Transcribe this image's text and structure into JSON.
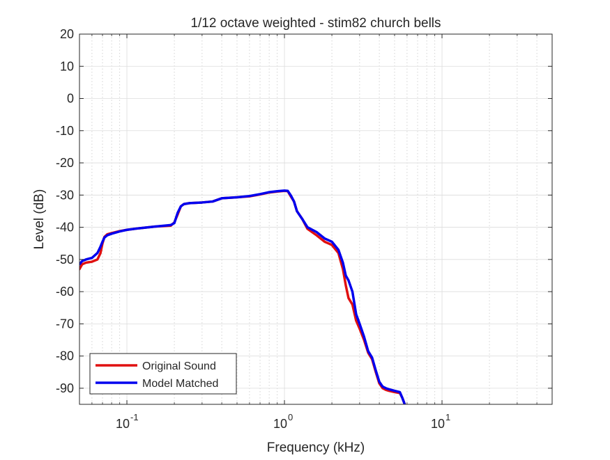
{
  "chart_data": {
    "type": "line",
    "title": "1/12 octave weighted - stim82 church bells",
    "xlabel": "Frequency (kHz)",
    "ylabel": "Level (dB)",
    "xscale": "log",
    "xlim": [
      0.05,
      50
    ],
    "ylim": [
      -95,
      20
    ],
    "grid": true,
    "legend_location": "bottom-left",
    "x_ticks": [
      {
        "value": 0.1,
        "base": "10",
        "exp": "-1"
      },
      {
        "value": 1,
        "base": "10",
        "exp": "0"
      },
      {
        "value": 10,
        "base": "10",
        "exp": "1"
      }
    ],
    "y_ticks": [
      20,
      10,
      0,
      -10,
      -20,
      -30,
      -40,
      -50,
      -60,
      -70,
      -80,
      -90
    ],
    "series": [
      {
        "name": "Original Sound",
        "color": "#e01010",
        "x": [
          0.05,
          0.052,
          0.055,
          0.06,
          0.065,
          0.068,
          0.07,
          0.072,
          0.075,
          0.08,
          0.09,
          0.1,
          0.12,
          0.15,
          0.19,
          0.2,
          0.21,
          0.22,
          0.23,
          0.25,
          0.3,
          0.35,
          0.4,
          0.5,
          0.6,
          0.7,
          0.8,
          0.9,
          1.0,
          1.05,
          1.1,
          1.15,
          1.2,
          1.3,
          1.4,
          1.6,
          1.8,
          1.9,
          2.0,
          2.2,
          2.35,
          2.45,
          2.55,
          2.7,
          2.85,
          3.0,
          3.2,
          3.4,
          3.6,
          3.8,
          4.0,
          4.2,
          4.4,
          4.6,
          5.0,
          5.4,
          5.6,
          5.8
        ],
        "y": [
          -53,
          -51.5,
          -51,
          -50.7,
          -50,
          -48,
          -45,
          -43,
          -42.2,
          -41.8,
          -41.2,
          -40.8,
          -40.3,
          -39.8,
          -39.5,
          -38.5,
          -36,
          -33.5,
          -32.8,
          -32.5,
          -32.3,
          -32.0,
          -31.0,
          -30.7,
          -30.4,
          -29.8,
          -29.2,
          -28.9,
          -28.7,
          -28.8,
          -30.5,
          -32,
          -35,
          -37.5,
          -40.5,
          -42.5,
          -44.5,
          -45,
          -45.5,
          -48,
          -53,
          -58,
          -62,
          -64,
          -69,
          -71.5,
          -75,
          -79,
          -81,
          -85,
          -88.5,
          -90,
          -90.5,
          -90.8,
          -91.2,
          -91.5,
          -93,
          -95
        ]
      },
      {
        "name": "Model Matched",
        "color": "#0000ee",
        "x": [
          0.05,
          0.052,
          0.055,
          0.06,
          0.065,
          0.068,
          0.07,
          0.072,
          0.075,
          0.08,
          0.09,
          0.1,
          0.12,
          0.15,
          0.19,
          0.2,
          0.21,
          0.22,
          0.23,
          0.25,
          0.3,
          0.35,
          0.4,
          0.5,
          0.6,
          0.7,
          0.8,
          0.9,
          1.0,
          1.05,
          1.1,
          1.15,
          1.2,
          1.3,
          1.4,
          1.6,
          1.8,
          1.9,
          2.0,
          2.2,
          2.35,
          2.45,
          2.55,
          2.7,
          2.85,
          3.0,
          3.2,
          3.4,
          3.6,
          3.8,
          4.0,
          4.2,
          4.4,
          4.6,
          5.0,
          5.4,
          5.6,
          5.8
        ],
        "y": [
          -51.5,
          -50.5,
          -50,
          -49.5,
          -48,
          -46,
          -44.5,
          -43.2,
          -42.5,
          -42,
          -41.3,
          -40.8,
          -40.3,
          -39.8,
          -39.3,
          -38.7,
          -35.5,
          -33.5,
          -32.8,
          -32.5,
          -32.3,
          -32.0,
          -31.0,
          -30.7,
          -30.3,
          -29.7,
          -29.1,
          -28.8,
          -28.6,
          -28.7,
          -30.2,
          -32,
          -35,
          -37.5,
          -40,
          -41.5,
          -43.5,
          -44,
          -44.5,
          -47,
          -51,
          -55,
          -56.5,
          -60,
          -67,
          -70,
          -74,
          -78.5,
          -80.5,
          -84.5,
          -88,
          -89.5,
          -90,
          -90.3,
          -90.8,
          -91.2,
          -93,
          -95
        ]
      }
    ]
  }
}
